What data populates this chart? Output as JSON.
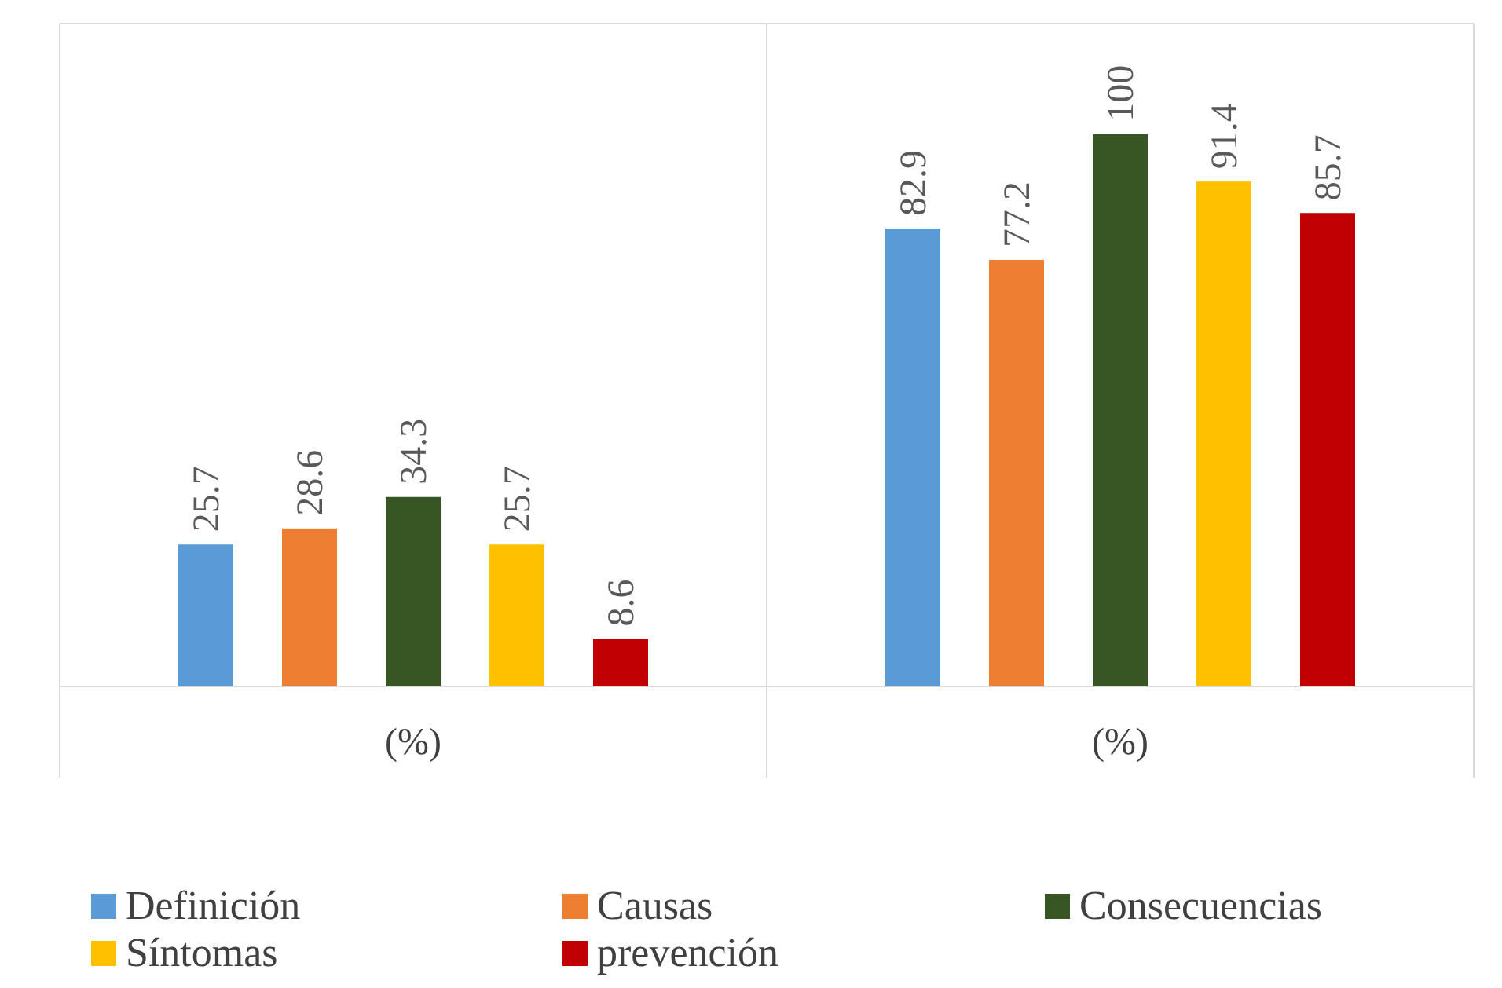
{
  "chart_data": {
    "type": "bar",
    "categories": [
      "(%)",
      "(%)"
    ],
    "series": [
      {
        "name": "Definición",
        "color": "#5b9bd5",
        "values": [
          25.7,
          82.9
        ]
      },
      {
        "name": "Causas",
        "color": "#ed7d31",
        "values": [
          28.6,
          77.2
        ]
      },
      {
        "name": "Consecuencias",
        "color": "#375623",
        "values": [
          34.3,
          100
        ]
      },
      {
        "name": "Síntomas",
        "color": "#ffc000",
        "values": [
          25.7,
          91.4
        ]
      },
      {
        "name": "prevención",
        "color": "#c00000",
        "values": [
          8.6,
          85.7
        ]
      }
    ],
    "data_labels": true,
    "legend": "bottom"
  }
}
